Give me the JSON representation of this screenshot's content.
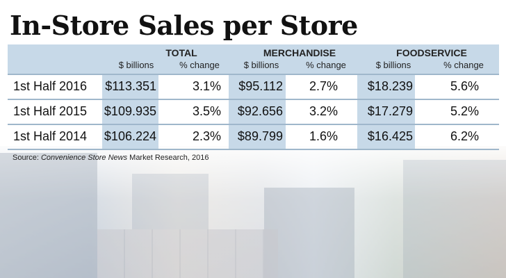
{
  "title": "In-Store Sales per Store",
  "columns": {
    "groups": [
      {
        "name": "TOTAL",
        "sub": [
          "$ billions",
          "% change"
        ]
      },
      {
        "name": "MERCHANDISE",
        "sub": [
          "$ billions",
          "% change"
        ]
      },
      {
        "name": "FOODSERVICE",
        "sub": [
          "$ billions",
          "% change"
        ]
      }
    ]
  },
  "rows": [
    {
      "label": "1st Half 2016",
      "values": [
        "$113.351",
        "3.1%",
        "$95.112",
        "2.7%",
        "$18.239",
        "5.6%"
      ]
    },
    {
      "label": "1st Half 2015",
      "values": [
        "$109.935",
        "3.5%",
        "$92.656",
        "3.2%",
        "$17.279",
        "5.2%"
      ]
    },
    {
      "label": "1st Half 2014",
      "values": [
        "$106.224",
        "2.3%",
        "$89.799",
        "1.6%",
        "$16.425",
        "6.2%"
      ]
    }
  ],
  "source": {
    "prefix": "Source: ",
    "publication": "Convenience Store News",
    "suffix": " Market Research, 2016"
  },
  "colors": {
    "header_band": "#c7d9e8",
    "highlight_column": "#c7d9e8",
    "row_rule": "#9fb7cb"
  }
}
